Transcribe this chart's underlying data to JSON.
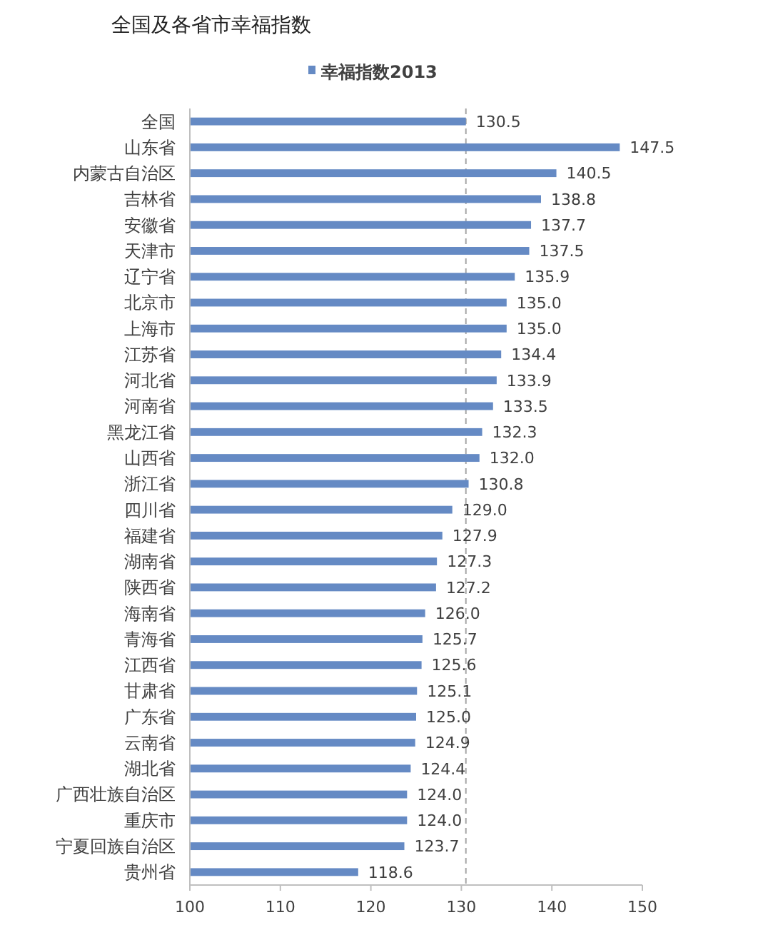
{
  "chart_data": {
    "type": "bar",
    "orientation": "horizontal",
    "title": "全国及各省市幸福指数",
    "categories": [
      "全国",
      "山东省",
      "内蒙古自治区",
      "吉林省",
      "安徽省",
      "天津市",
      "辽宁省",
      "北京市",
      "上海市",
      "江苏省",
      "河北省",
      "河南省",
      "黑龙江省",
      "山西省",
      "浙江省",
      "四川省",
      "福建省",
      "湖南省",
      "陕西省",
      "海南省",
      "青海省",
      "江西省",
      "甘肃省",
      "广东省",
      "云南省",
      "湖北省",
      "广西壮族自治区",
      "重庆市",
      "宁夏回族自治区",
      "贵州省"
    ],
    "series": [
      {
        "name": "幸福指数2013",
        "color": "#658ac4",
        "values": [
          130.5,
          147.5,
          140.5,
          138.8,
          137.7,
          137.5,
          135.9,
          135.0,
          135.0,
          134.4,
          133.9,
          133.5,
          132.3,
          132.0,
          130.8,
          129.0,
          127.9,
          127.3,
          127.2,
          126.0,
          125.7,
          125.6,
          125.1,
          125.0,
          124.9,
          124.4,
          124.0,
          124.0,
          123.7,
          118.6
        ],
        "value_labels": [
          "130.5",
          "147.5",
          "140.5",
          "138.8",
          "137.7",
          "137.5",
          "135.9",
          "135.0",
          "135.0",
          "134.4",
          "133.9",
          "133.5",
          "132.3",
          "132.0",
          "130.8",
          "129.0",
          "127.9",
          "127.3",
          "127.2",
          "126.0",
          "125.7",
          "125.6",
          "125.1",
          "125.0",
          "124.9",
          "124.4",
          "124.0",
          "124.0",
          "123.7",
          "118.6"
        ]
      }
    ],
    "xlim": [
      100,
      150
    ],
    "xticks": [
      100,
      110,
      120,
      130,
      140,
      150
    ],
    "legend": "top",
    "ref_lines": [
      {
        "axis": "x",
        "value": 130.5,
        "color": "#a6a6a6",
        "line_style": "dashed"
      }
    ]
  }
}
